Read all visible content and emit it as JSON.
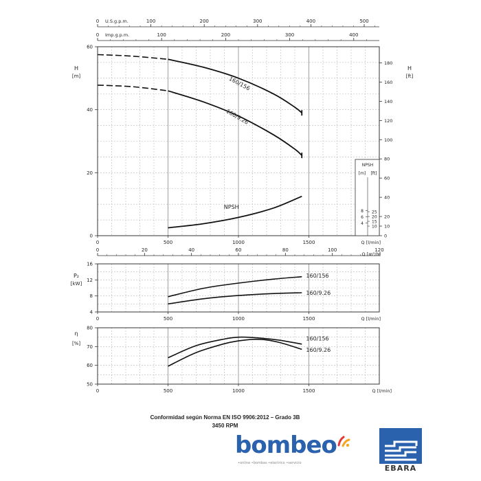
{
  "chart_data": [
    {
      "type": "line",
      "panel": "head",
      "ylabel": "H [m]",
      "ylabel_right": "H [ft]",
      "ylim": [
        0,
        60
      ],
      "yticks": [
        0,
        20,
        40,
        60
      ],
      "yticks_right": [
        0,
        10,
        20,
        40,
        60,
        80,
        100,
        120,
        140,
        160,
        180
      ],
      "ylim_right_ft": [
        0,
        196.85
      ],
      "xlabel": "Q [l/min]",
      "xlim": [
        0,
        2000
      ],
      "xticks": [
        0,
        500,
        1000,
        1500
      ],
      "secondary_x_top": [
        {
          "label": "U.S.g.p.m.",
          "ticks": [
            0,
            100,
            200,
            300,
            400,
            500
          ],
          "gpm_per_lpm": 0.26417
        },
        {
          "label": "Imp.g.p.m.",
          "ticks": [
            0,
            100,
            200,
            300,
            400
          ],
          "gpm_per_lpm": 0.21997
        }
      ],
      "secondary_x_bottom": {
        "label": "Q [m³/h]",
        "ticks": [
          0,
          20,
          40,
          60,
          80,
          100,
          120
        ],
        "m3h_per_lpm": 0.06
      },
      "npsh_scale": {
        "label_m": "[m]",
        "label_ft": "[ft]",
        "title": "NPSH",
        "ticks_m": [
          4,
          6,
          8
        ],
        "ticks_ft": [
          10,
          15,
          20,
          25
        ]
      },
      "series": [
        {
          "name": "160/156",
          "x": [
            0,
            250,
            500,
            750,
            1000,
            1250,
            1400,
            1450
          ],
          "y": [
            57.5,
            57.0,
            56.0,
            53.5,
            50.0,
            45.0,
            40.8,
            39.0
          ],
          "dashed_until": 500
        },
        {
          "name": "160/9.26",
          "x": [
            0,
            250,
            500,
            750,
            1000,
            1250,
            1400,
            1450
          ],
          "y": [
            47.8,
            47.3,
            46.0,
            42.5,
            38.0,
            32.0,
            27.5,
            25.5
          ],
          "dashed_until": 500
        },
        {
          "name": "NPSH",
          "x": [
            500,
            750,
            1000,
            1250,
            1450
          ],
          "y": [
            2.5,
            3.8,
            5.8,
            8.8,
            12.5
          ]
        }
      ]
    },
    {
      "type": "line",
      "panel": "power",
      "ylabel": "P₂ [kW]",
      "ylim": [
        4,
        16
      ],
      "yticks": [
        4,
        8,
        12,
        16
      ],
      "xlabel": "Q [l/min]",
      "xlim": [
        0,
        2000
      ],
      "xticks": [
        0,
        500,
        1000,
        1500
      ],
      "series": [
        {
          "name": "160/156",
          "x": [
            500,
            750,
            1000,
            1250,
            1450
          ],
          "y": [
            7.8,
            9.9,
            11.2,
            12.2,
            12.8
          ]
        },
        {
          "name": "160/9.26",
          "x": [
            500,
            750,
            1000,
            1250,
            1450
          ],
          "y": [
            6.0,
            7.3,
            8.1,
            8.6,
            8.8
          ]
        }
      ]
    },
    {
      "type": "line",
      "panel": "efficiency",
      "ylabel": "η [%]",
      "ylim": [
        50,
        80
      ],
      "yticks": [
        50,
        60,
        70,
        80
      ],
      "xlabel": "Q [l/min]",
      "xlim": [
        0,
        2000
      ],
      "xticks": [
        0,
        500,
        1000,
        1500
      ],
      "series": [
        {
          "name": "160/156",
          "x": [
            500,
            700,
            900,
            1000,
            1100,
            1200,
            1300,
            1450
          ],
          "y": [
            64.0,
            70.5,
            74.0,
            75.0,
            74.8,
            74.2,
            73.3,
            71.3
          ]
        },
        {
          "name": "160/9.26",
          "x": [
            500,
            700,
            900,
            1000,
            1100,
            1200,
            1300,
            1450
          ],
          "y": [
            59.5,
            66.8,
            71.5,
            73.0,
            73.8,
            73.5,
            72.0,
            68.5
          ]
        }
      ]
    }
  ],
  "footer": {
    "conformity": "Conformidad según Norma EN ISO 9906:2012 – Grado 3B",
    "rpm": "3450 RPM"
  },
  "logos": {
    "bombeo_word": "bombeo",
    "bombeo_tagline": "•online •bombas •electrico •servicio",
    "ebara_word": "EBARA",
    "brand_blue": "#2a62ad"
  }
}
